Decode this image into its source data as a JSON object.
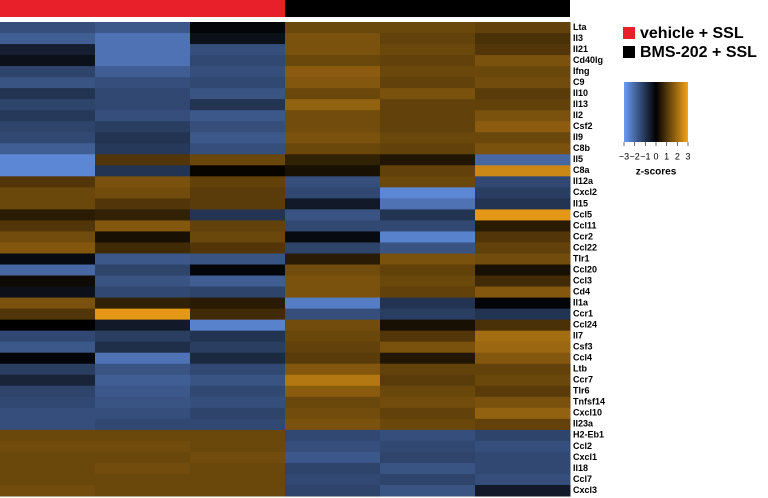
{
  "chart_data": {
    "type": "heatmap",
    "groups": [
      {
        "name": "vehicle + SSL",
        "color": "#e8202a"
      },
      {
        "name": "BMS-202 + SSL",
        "color": "#000000"
      }
    ],
    "categories": [
      "Lta",
      "Il3",
      "Il21",
      "Cd40lg",
      "Ifng",
      "C9",
      "Il10",
      "Il13",
      "Il2",
      "Csf2",
      "Il9",
      "C8b",
      "Il5",
      "C8a",
      "Il12a",
      "Cxcl2",
      "Il15",
      "Ccl5",
      "Ccl11",
      "Ccr2",
      "Ccl22",
      "Tlr1",
      "Ccl20",
      "Ccl3",
      "Cd4",
      "Il1a",
      "Ccr1",
      "Ccl24",
      "Il7",
      "Csf3",
      "Ccl4",
      "Ltb",
      "Ccr7",
      "Tlr6",
      "Tnfsf14",
      "Cxcl10",
      "Il23a",
      "H2-Eb1",
      "Ccl2",
      "Cxcl1",
      "Il18",
      "Ccl7",
      "Cxcl3"
    ],
    "values": [
      [
        -1.5,
        -1.7,
        -0.1,
        1.3,
        1.3,
        1.2
      ],
      [
        -1.8,
        -2.2,
        -0.3,
        1.5,
        1.2,
        0.9
      ],
      [
        -0.6,
        -2.2,
        -1.5,
        1.5,
        1.3,
        1.0
      ],
      [
        -0.3,
        -2.2,
        -1.4,
        1.3,
        1.2,
        1.5
      ],
      [
        -1.3,
        -1.8,
        -1.5,
        1.7,
        1.3,
        1.3
      ],
      [
        -1.6,
        -1.5,
        -1.4,
        1.6,
        1.2,
        1.4
      ],
      [
        -1.0,
        -1.4,
        -1.6,
        1.3,
        1.5,
        1.1
      ],
      [
        -1.3,
        -1.4,
        -1.0,
        1.8,
        1.2,
        1.2
      ],
      [
        -1.1,
        -1.5,
        -1.7,
        1.4,
        1.2,
        1.5
      ],
      [
        -1.3,
        -1.2,
        -1.5,
        1.4,
        1.2,
        1.7
      ],
      [
        -1.4,
        -1.0,
        -1.7,
        1.5,
        1.3,
        1.3
      ],
      [
        -1.8,
        -1.1,
        -1.5,
        1.3,
        1.2,
        1.5
      ],
      [
        -2.6,
        1.0,
        1.3,
        0.6,
        0.4,
        -2.0
      ],
      [
        -2.6,
        -1.0,
        0.1,
        0.3,
        1.2,
        2.5
      ],
      [
        1.0,
        1.5,
        1.2,
        -1.5,
        1.3,
        -1.4
      ],
      [
        1.3,
        1.4,
        1.1,
        -1.4,
        -2.6,
        -1.2
      ],
      [
        1.3,
        1.0,
        1.1,
        -0.5,
        -2.2,
        -1.0
      ],
      [
        0.5,
        0.6,
        -1.0,
        -1.6,
        -1.0,
        2.8
      ],
      [
        1.0,
        1.6,
        1.2,
        -1.4,
        -1.4,
        0.5
      ],
      [
        1.4,
        0.3,
        1.3,
        -0.2,
        -2.5,
        1.0
      ],
      [
        1.6,
        0.8,
        1.0,
        -1.3,
        -1.6,
        1.2
      ],
      [
        -0.2,
        -1.7,
        -1.6,
        0.5,
        1.5,
        1.4
      ],
      [
        -2.0,
        -1.3,
        -0.1,
        1.4,
        1.2,
        0.3
      ],
      [
        0.2,
        -1.6,
        -1.8,
        1.5,
        1.3,
        0.8
      ],
      [
        -0.3,
        -1.4,
        -1.3,
        1.5,
        1.2,
        1.6
      ],
      [
        1.5,
        0.6,
        0.5,
        -2.4,
        -1.0,
        -0.1
      ],
      [
        1.0,
        2.8,
        0.8,
        -1.5,
        -1.2,
        -1.0
      ],
      [
        0.0,
        -0.5,
        -2.5,
        1.4,
        0.3,
        0.9
      ],
      [
        -1.4,
        -1.2,
        -1.0,
        1.3,
        1.0,
        2.0
      ],
      [
        -1.7,
        -0.9,
        -1.2,
        1.2,
        1.5,
        1.9
      ],
      [
        -0.1,
        -2.2,
        -0.8,
        1.1,
        0.4,
        1.6
      ],
      [
        -1.2,
        -1.6,
        -1.4,
        1.6,
        1.2,
        1.2
      ],
      [
        -0.7,
        -1.8,
        -1.6,
        2.2,
        1.1,
        1.3
      ],
      [
        -1.3,
        -1.7,
        -1.4,
        1.7,
        1.3,
        1.1
      ],
      [
        -1.4,
        -1.6,
        -1.5,
        1.3,
        1.4,
        1.5
      ],
      [
        -1.5,
        -1.5,
        -1.3,
        1.4,
        1.2,
        1.8
      ],
      [
        -1.5,
        -1.4,
        -1.4,
        1.5,
        1.3,
        1.2
      ],
      [
        1.3,
        1.3,
        1.3,
        -1.4,
        -1.5,
        -1.3
      ],
      [
        1.4,
        1.4,
        1.3,
        -1.5,
        -1.4,
        -1.5
      ],
      [
        1.3,
        1.3,
        1.4,
        -1.7,
        -1.3,
        -1.4
      ],
      [
        1.3,
        1.4,
        1.3,
        -1.3,
        -1.6,
        -1.4
      ],
      [
        1.3,
        1.3,
        1.3,
        -1.4,
        -1.3,
        -1.5
      ],
      [
        1.4,
        1.3,
        1.3,
        -1.3,
        -1.6,
        -0.5
      ]
    ],
    "zlim": [
      -3,
      3
    ],
    "zticks": [
      {
        "value": -3,
        "label": "−3"
      },
      {
        "value": -2,
        "label": "−2"
      },
      {
        "value": -1,
        "label": "−1"
      },
      0,
      1,
      2,
      3
    ],
    "zlabel": "z-scores",
    "colormap": [
      "#6a9cf5",
      "#000000",
      "#f5a31a"
    ]
  }
}
